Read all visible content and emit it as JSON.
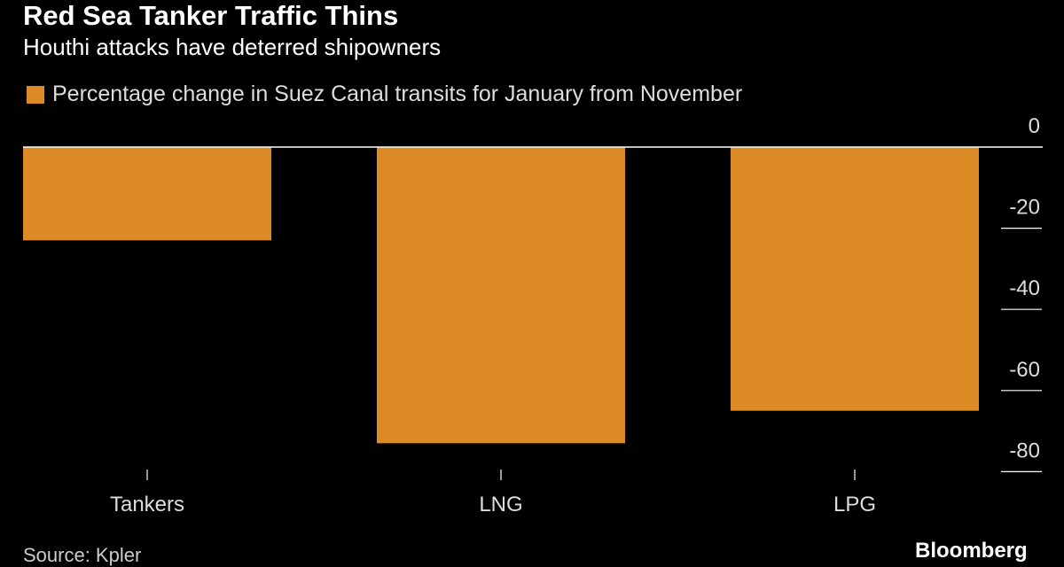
{
  "header": {
    "title": "Red Sea Tanker Traffic Thins",
    "subtitle": "Houthi attacks have deterred shipowners"
  },
  "footer": {
    "source": "Source: Kpler",
    "brand": "Bloomberg"
  },
  "colors": {
    "background": "#000000",
    "bar": "#dc8a25",
    "zero_line": "#ffffff",
    "axis_text": "#dddddd",
    "tick": "#cccccc"
  },
  "chart_data": {
    "type": "bar",
    "title": "Red Sea Tanker Traffic Thins",
    "subtitle": "Houthi attacks have deterred shipowners",
    "categories": [
      "Tankers",
      "LNG",
      "LPG"
    ],
    "series": [
      {
        "name": "Percentage change in Suez Canal transits for January from November",
        "values": [
          -23,
          -73,
          -65
        ]
      }
    ],
    "ylim": [
      -80,
      0
    ],
    "yticks": [
      0,
      -20,
      -40,
      -60,
      -80
    ],
    "y_axis_side": "right",
    "grid": false,
    "legend_position": "top-left"
  }
}
